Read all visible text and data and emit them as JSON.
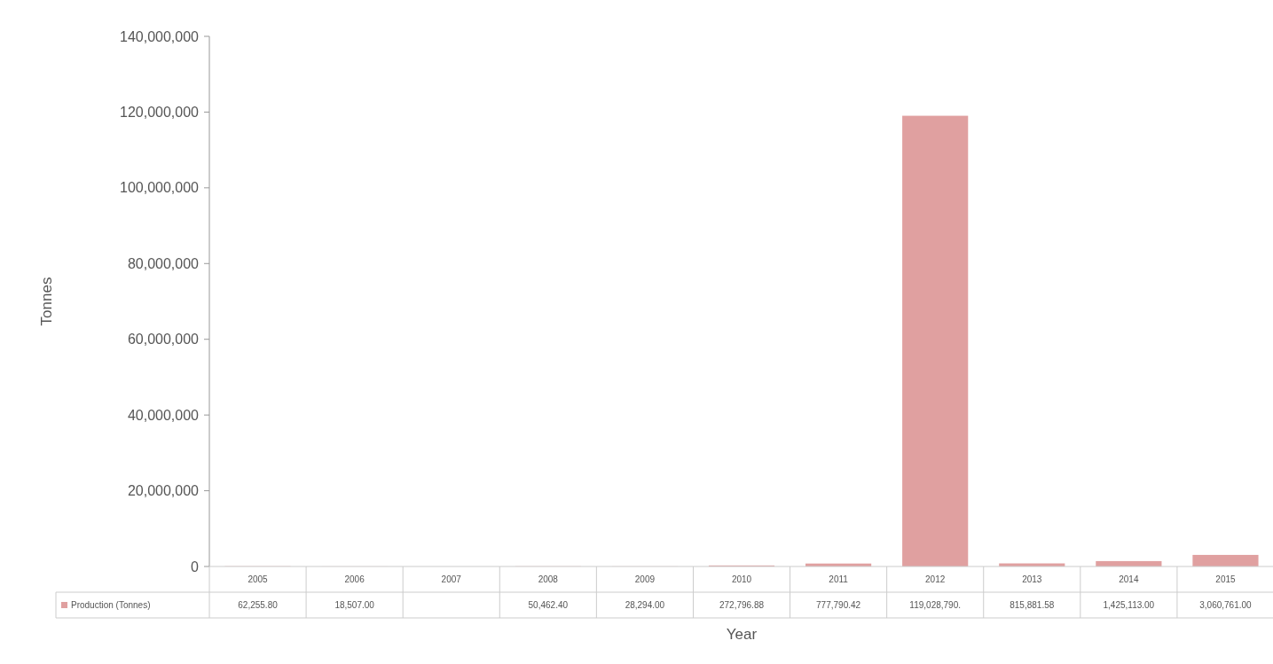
{
  "chart_data": {
    "type": "bar",
    "xlabel": "Year",
    "ylabel": "Tonnes",
    "categories": [
      "2005",
      "2006",
      "2007",
      "2008",
      "2009",
      "2010",
      "2011",
      "2012",
      "2013",
      "2014",
      "2015"
    ],
    "series": [
      {
        "name": "Production (Tonnes)",
        "color": "#e0a0a0",
        "values": [
          62255.8,
          18507,
          null,
          50462.4,
          28294,
          272796.88,
          777790.42,
          119028790,
          815881.58,
          1425113,
          3060761
        ],
        "value_labels": [
          "62,255.80",
          "18,507.00",
          null,
          "50,462.40",
          "28,294.00",
          "272,796.88",
          "777,790.42",
          "119,028,790.",
          "815,881.58",
          "1,425,113.00",
          "3,060,761.00"
        ]
      }
    ],
    "ylim": [
      0,
      140000000
    ],
    "yticks": [
      {
        "value": 0,
        "label": "0"
      },
      {
        "value": 20000000,
        "label": "20,000,000"
      },
      {
        "value": 40000000,
        "label": "40,000,000"
      },
      {
        "value": 60000000,
        "label": "60,000,000"
      },
      {
        "value": 80000000,
        "label": "80,000,000"
      },
      {
        "value": 100000000,
        "label": "100,000,000"
      },
      {
        "value": 120000000,
        "label": "120,000,000"
      },
      {
        "value": 140000000,
        "label": "140,000,000"
      }
    ],
    "legend": "bottom left",
    "grid": false
  }
}
